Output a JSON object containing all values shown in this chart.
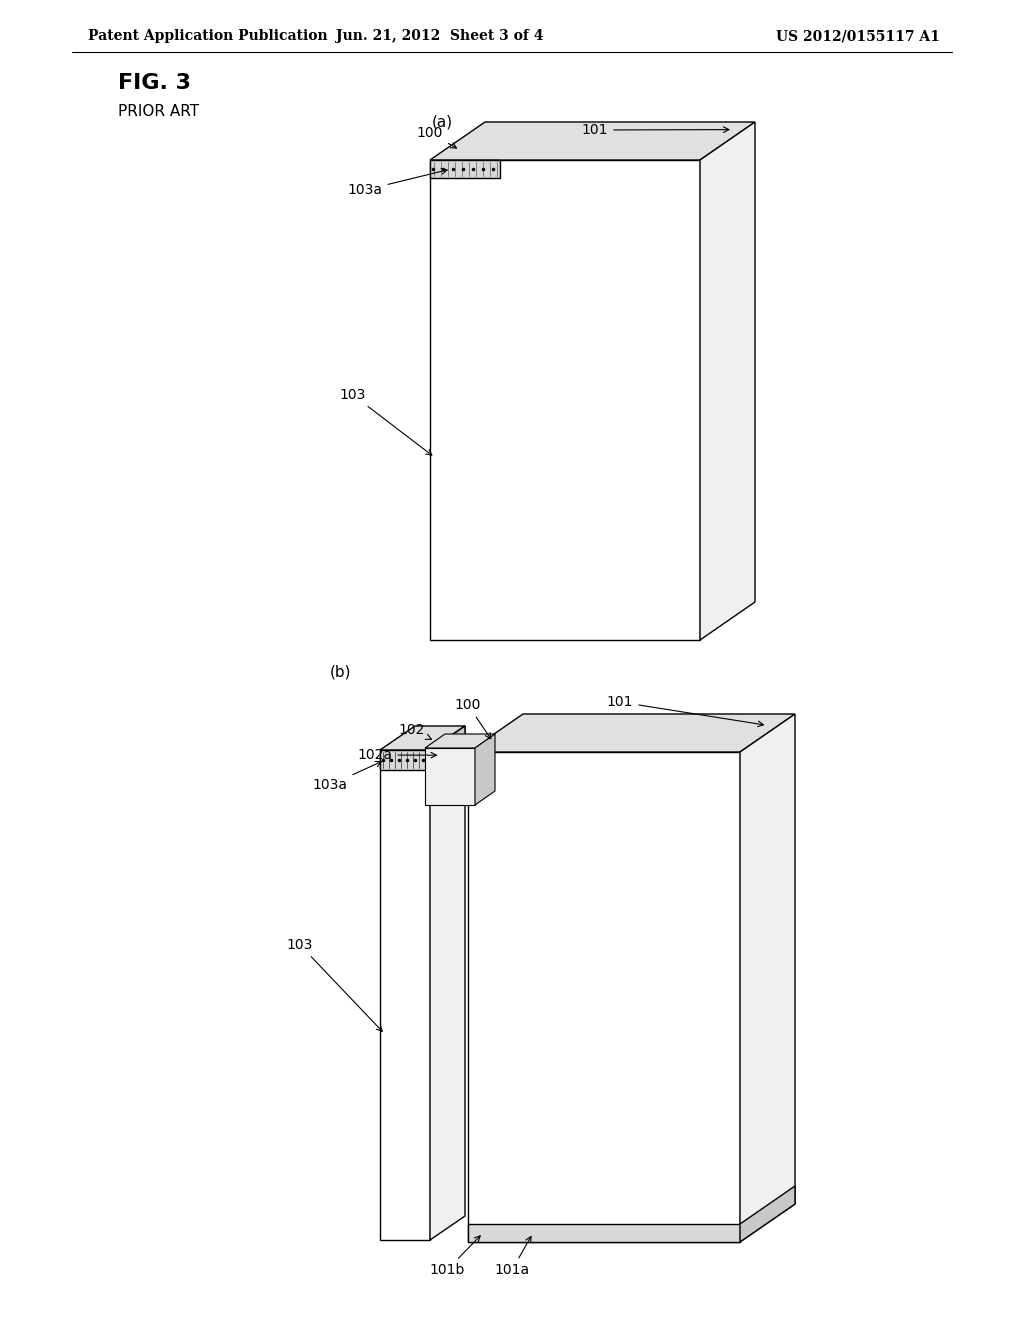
{
  "bg_color": "#ffffff",
  "line_color": "#000000",
  "header_left": "Patent Application Publication",
  "header_mid": "Jun. 21, 2012  Sheet 3 of 4",
  "header_right": "US 2012/0155117 A1",
  "fig_label": "FIG. 3",
  "prior_art_label": "PRIOR ART",
  "fig_a_label": "(a)",
  "fig_b_label": "(b)",
  "lw": 1.0,
  "face_white": "#ffffff",
  "face_light": "#f0f0f0",
  "face_mid": "#e0e0e0",
  "face_dark": "#c8c8c8",
  "face_strip": "#d8d8d8"
}
